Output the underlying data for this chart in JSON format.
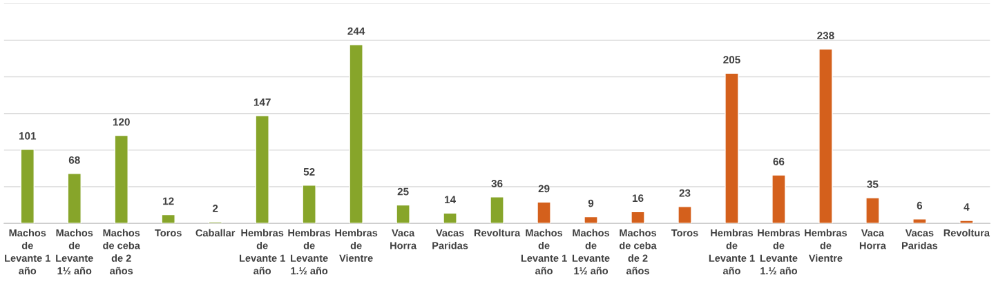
{
  "chart_data": {
    "type": "bar",
    "categories": [
      "Machos\nde\nLevante 1\naño",
      "Machos\nde\nLevante\n1½ año",
      "Machos\nde ceba\nde 2\naños",
      "Toros",
      "Caballar",
      "Hembras\nde\nLevante 1\naño",
      "Hembras\nde\nLevante\n1.½ año",
      "Hembras\nde\nVientre",
      "Vaca\nHorra",
      "Vacas\nParidas",
      "Revoltura",
      "Machos\nde\nLevante 1\naño",
      "Machos\nde\nLevante\n1½ año",
      "Machos\nde ceba\nde 2\naños",
      "Toros",
      "Hembras\nde\nLevante 1\naño",
      "Hembras\nde\nLevante\n1.½ año",
      "Hembras\nde\nVientre",
      "Vaca\nHorra",
      "Vacas\nParidas",
      "Revoltura"
    ],
    "values": [
      101,
      68,
      120,
      12,
      2,
      147,
      52,
      244,
      25,
      14,
      36,
      29,
      9,
      16,
      23,
      205,
      66,
      238,
      35,
      6,
      4
    ],
    "colors": [
      "#87a52a",
      "#87a52a",
      "#87a52a",
      "#87a52a",
      "#87a52a",
      "#87a52a",
      "#87a52a",
      "#87a52a",
      "#87a52a",
      "#87a52a",
      "#87a52a",
      "#d4601c",
      "#d4601c",
      "#d4601c",
      "#d4601c",
      "#d4601c",
      "#d4601c",
      "#d4601c",
      "#d4601c",
      "#d4601c",
      "#d4601c"
    ],
    "ylim": [
      0,
      300
    ],
    "yticks": [
      {
        "value": 0,
        "label": null
      },
      {
        "value": 50,
        "label": null
      },
      {
        "value": 100,
        "label": null
      },
      {
        "value": 150,
        "label": null
      },
      {
        "value": 200,
        "label": null
      },
      {
        "value": 250,
        "label": null
      },
      {
        "value": 300,
        "label": null
      }
    ],
    "grid": "y",
    "tick_labels": "x",
    "data_labels": true,
    "legend": false
  }
}
